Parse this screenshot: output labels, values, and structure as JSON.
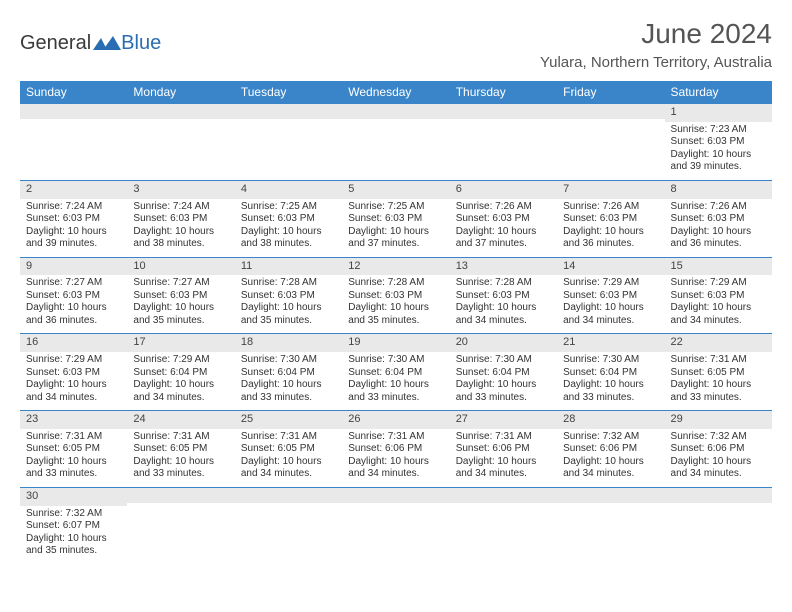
{
  "brand": {
    "name1": "General",
    "name2": "Blue",
    "logo_color": "#2a6db3"
  },
  "title": "June 2024",
  "location": "Yulara, Northern Territory, Australia",
  "colors": {
    "header_bg": "#3a85c9",
    "band_bg": "#e9e9e9",
    "rule": "#3a85c9"
  },
  "day_headers": [
    "Sunday",
    "Monday",
    "Tuesday",
    "Wednesday",
    "Thursday",
    "Friday",
    "Saturday"
  ],
  "weeks": [
    [
      null,
      null,
      null,
      null,
      null,
      null,
      {
        "n": "1",
        "sunrise": "Sunrise: 7:23 AM",
        "sunset": "Sunset: 6:03 PM",
        "day1": "Daylight: 10 hours",
        "day2": "and 39 minutes."
      }
    ],
    [
      {
        "n": "2",
        "sunrise": "Sunrise: 7:24 AM",
        "sunset": "Sunset: 6:03 PM",
        "day1": "Daylight: 10 hours",
        "day2": "and 39 minutes."
      },
      {
        "n": "3",
        "sunrise": "Sunrise: 7:24 AM",
        "sunset": "Sunset: 6:03 PM",
        "day1": "Daylight: 10 hours",
        "day2": "and 38 minutes."
      },
      {
        "n": "4",
        "sunrise": "Sunrise: 7:25 AM",
        "sunset": "Sunset: 6:03 PM",
        "day1": "Daylight: 10 hours",
        "day2": "and 38 minutes."
      },
      {
        "n": "5",
        "sunrise": "Sunrise: 7:25 AM",
        "sunset": "Sunset: 6:03 PM",
        "day1": "Daylight: 10 hours",
        "day2": "and 37 minutes."
      },
      {
        "n": "6",
        "sunrise": "Sunrise: 7:26 AM",
        "sunset": "Sunset: 6:03 PM",
        "day1": "Daylight: 10 hours",
        "day2": "and 37 minutes."
      },
      {
        "n": "7",
        "sunrise": "Sunrise: 7:26 AM",
        "sunset": "Sunset: 6:03 PM",
        "day1": "Daylight: 10 hours",
        "day2": "and 36 minutes."
      },
      {
        "n": "8",
        "sunrise": "Sunrise: 7:26 AM",
        "sunset": "Sunset: 6:03 PM",
        "day1": "Daylight: 10 hours",
        "day2": "and 36 minutes."
      }
    ],
    [
      {
        "n": "9",
        "sunrise": "Sunrise: 7:27 AM",
        "sunset": "Sunset: 6:03 PM",
        "day1": "Daylight: 10 hours",
        "day2": "and 36 minutes."
      },
      {
        "n": "10",
        "sunrise": "Sunrise: 7:27 AM",
        "sunset": "Sunset: 6:03 PM",
        "day1": "Daylight: 10 hours",
        "day2": "and 35 minutes."
      },
      {
        "n": "11",
        "sunrise": "Sunrise: 7:28 AM",
        "sunset": "Sunset: 6:03 PM",
        "day1": "Daylight: 10 hours",
        "day2": "and 35 minutes."
      },
      {
        "n": "12",
        "sunrise": "Sunrise: 7:28 AM",
        "sunset": "Sunset: 6:03 PM",
        "day1": "Daylight: 10 hours",
        "day2": "and 35 minutes."
      },
      {
        "n": "13",
        "sunrise": "Sunrise: 7:28 AM",
        "sunset": "Sunset: 6:03 PM",
        "day1": "Daylight: 10 hours",
        "day2": "and 34 minutes."
      },
      {
        "n": "14",
        "sunrise": "Sunrise: 7:29 AM",
        "sunset": "Sunset: 6:03 PM",
        "day1": "Daylight: 10 hours",
        "day2": "and 34 minutes."
      },
      {
        "n": "15",
        "sunrise": "Sunrise: 7:29 AM",
        "sunset": "Sunset: 6:03 PM",
        "day1": "Daylight: 10 hours",
        "day2": "and 34 minutes."
      }
    ],
    [
      {
        "n": "16",
        "sunrise": "Sunrise: 7:29 AM",
        "sunset": "Sunset: 6:03 PM",
        "day1": "Daylight: 10 hours",
        "day2": "and 34 minutes."
      },
      {
        "n": "17",
        "sunrise": "Sunrise: 7:29 AM",
        "sunset": "Sunset: 6:04 PM",
        "day1": "Daylight: 10 hours",
        "day2": "and 34 minutes."
      },
      {
        "n": "18",
        "sunrise": "Sunrise: 7:30 AM",
        "sunset": "Sunset: 6:04 PM",
        "day1": "Daylight: 10 hours",
        "day2": "and 33 minutes."
      },
      {
        "n": "19",
        "sunrise": "Sunrise: 7:30 AM",
        "sunset": "Sunset: 6:04 PM",
        "day1": "Daylight: 10 hours",
        "day2": "and 33 minutes."
      },
      {
        "n": "20",
        "sunrise": "Sunrise: 7:30 AM",
        "sunset": "Sunset: 6:04 PM",
        "day1": "Daylight: 10 hours",
        "day2": "and 33 minutes."
      },
      {
        "n": "21",
        "sunrise": "Sunrise: 7:30 AM",
        "sunset": "Sunset: 6:04 PM",
        "day1": "Daylight: 10 hours",
        "day2": "and 33 minutes."
      },
      {
        "n": "22",
        "sunrise": "Sunrise: 7:31 AM",
        "sunset": "Sunset: 6:05 PM",
        "day1": "Daylight: 10 hours",
        "day2": "and 33 minutes."
      }
    ],
    [
      {
        "n": "23",
        "sunrise": "Sunrise: 7:31 AM",
        "sunset": "Sunset: 6:05 PM",
        "day1": "Daylight: 10 hours",
        "day2": "and 33 minutes."
      },
      {
        "n": "24",
        "sunrise": "Sunrise: 7:31 AM",
        "sunset": "Sunset: 6:05 PM",
        "day1": "Daylight: 10 hours",
        "day2": "and 33 minutes."
      },
      {
        "n": "25",
        "sunrise": "Sunrise: 7:31 AM",
        "sunset": "Sunset: 6:05 PM",
        "day1": "Daylight: 10 hours",
        "day2": "and 34 minutes."
      },
      {
        "n": "26",
        "sunrise": "Sunrise: 7:31 AM",
        "sunset": "Sunset: 6:06 PM",
        "day1": "Daylight: 10 hours",
        "day2": "and 34 minutes."
      },
      {
        "n": "27",
        "sunrise": "Sunrise: 7:31 AM",
        "sunset": "Sunset: 6:06 PM",
        "day1": "Daylight: 10 hours",
        "day2": "and 34 minutes."
      },
      {
        "n": "28",
        "sunrise": "Sunrise: 7:32 AM",
        "sunset": "Sunset: 6:06 PM",
        "day1": "Daylight: 10 hours",
        "day2": "and 34 minutes."
      },
      {
        "n": "29",
        "sunrise": "Sunrise: 7:32 AM",
        "sunset": "Sunset: 6:06 PM",
        "day1": "Daylight: 10 hours",
        "day2": "and 34 minutes."
      }
    ],
    [
      {
        "n": "30",
        "sunrise": "Sunrise: 7:32 AM",
        "sunset": "Sunset: 6:07 PM",
        "day1": "Daylight: 10 hours",
        "day2": "and 35 minutes."
      },
      null,
      null,
      null,
      null,
      null,
      null
    ]
  ]
}
